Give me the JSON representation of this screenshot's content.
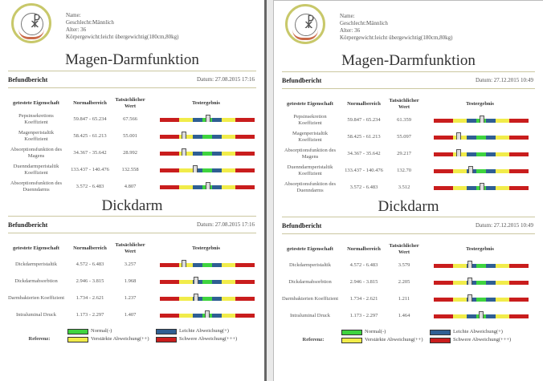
{
  "colors": {
    "red": "#c91d1d",
    "yellow": "#f1ec4a",
    "blue": "#2f5f93",
    "green": "#3fd43f"
  },
  "pages": [
    {
      "patient": {
        "name": "Name:",
        "gender": "Geschlecht:Männlich",
        "age": "Alter: 36",
        "weight": "Körpergewicht:leicht übergewichtig(180cm,80kg)"
      },
      "section1": {
        "title": "Magen-Darmfunktion",
        "report_label": "Befundbericht",
        "date": "Datum: 27.08.2015 17:16",
        "headers": [
          "getestete Eigenschaft",
          "Normalbereich",
          "Tatsächlicher Wert",
          "Testergebnis"
        ],
        "rows": [
          {
            "name": "Pepsinsekretions Koeffizient",
            "range": "59.847 - 65.234",
            "value": "67.566",
            "pos": 51
          },
          {
            "name": "Magenperistaltik Koeffizient",
            "range": "58.425 - 61.213",
            "value": "55.001",
            "pos": 25
          },
          {
            "name": "Absorptionsfunktion des Magens",
            "range": "34.367 - 35.642",
            "value": "28.992",
            "pos": 25
          },
          {
            "name": "Duenndarmperistaltik Koeffizient",
            "range": "133.437 - 140.476",
            "value": "132.558",
            "pos": 37
          },
          {
            "name": "Absorptionsfunktion des Duenndarms",
            "range": "3.572 - 6.483",
            "value": "4.807",
            "pos": 51
          }
        ]
      },
      "section2": {
        "title": "Dickdarm",
        "report_label": "Befundbericht",
        "date": "Datum: 27.08.2015 17:16",
        "headers": [
          "getestete Eigenschaft",
          "Normalbereich",
          "Tatsächlicher Wert",
          "Testergebnis"
        ],
        "rows": [
          {
            "name": "Dickdarmperistaltik",
            "range": "4.572 - 6.483",
            "value": "3.257",
            "pos": 25
          },
          {
            "name": "Dickdarmabsorbtion",
            "range": "2.946 - 3.815",
            "value": "1.968",
            "pos": 38
          },
          {
            "name": "Darmbakterien Koeffizient",
            "range": "1.734 - 2.621",
            "value": "1.237",
            "pos": 38
          },
          {
            "name": "Intraluminal Druck",
            "range": "1.173 - 2.297",
            "value": "1.407",
            "pos": 50
          }
        ]
      },
      "legend": {
        "label": "Referenz:",
        "normal": "Normal(-)",
        "mild": "Leichte Abweichung(+)",
        "moderate": "Verstärkte Abweichung(++)",
        "severe": "Schwere Abweichung(+++)"
      }
    },
    {
      "patient": {
        "name": "Name:",
        "gender": "Geschlecht:Männlich",
        "age": "Alter: 36",
        "weight": "Körpergewicht:leicht übergewichtig(180cm,80kg)"
      },
      "section1": {
        "title": "Magen-Darmfunktion",
        "report_label": "Befundbericht",
        "date": "Datum: 27.12.2015 10:49",
        "headers": [
          "getestete Eigenschaft",
          "Normalbereich",
          "Tatsächlicher Wert",
          "Testergebnis"
        ],
        "rows": [
          {
            "name": "Pepsinsekretion Koeffizient",
            "range": "59.847 - 65.234",
            "value": "61.359",
            "pos": 51
          },
          {
            "name": "Magenperistaltik Koeffizient",
            "range": "58.425 - 61.213",
            "value": "55.097",
            "pos": 26
          },
          {
            "name": "Absorptionsfunktion des Magens",
            "range": "34.367 - 35.642",
            "value": "29.217",
            "pos": 26
          },
          {
            "name": "Duenndarmperistaltik Koeffizient",
            "range": "133.437 - 140.476",
            "value": "132.70",
            "pos": 39
          },
          {
            "name": "Absorptionsfunktion des Duenndarms",
            "range": "3.572 - 6.483",
            "value": "3.512",
            "pos": 51
          }
        ]
      },
      "section2": {
        "title": "Dickdarm",
        "report_label": "Befundbericht",
        "date": "Datum: 27.12.2015 10:49",
        "headers": [
          "getestete Eigenschaft",
          "Normalbereich",
          "Tatsächlicher Wert",
          "Testergebnis"
        ],
        "rows": [
          {
            "name": "Dickdarmperistaltik",
            "range": "4.572 - 6.483",
            "value": "3.579",
            "pos": 38
          },
          {
            "name": "Dickdarmabsorbtion",
            "range": "2.946 - 3.815",
            "value": "2.205",
            "pos": 38
          },
          {
            "name": "Darmbakterien Koeffizient",
            "range": "1.734 - 2.621",
            "value": "1.211",
            "pos": 38
          },
          {
            "name": "Intraluminal Druck",
            "range": "1.173 - 2.297",
            "value": "1.464",
            "pos": 50
          }
        ]
      },
      "legend": {
        "label": "Referenz:",
        "normal": "Normal(-)",
        "mild": "Leichte Abweichung(+)",
        "moderate": "Verstärkte Abweichung(++)",
        "severe": "Schwere Abweichung(+++)"
      }
    }
  ]
}
